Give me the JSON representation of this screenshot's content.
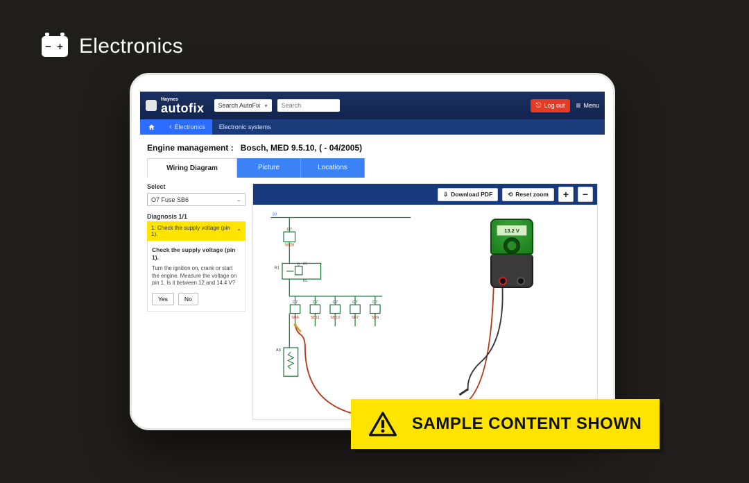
{
  "page_label": "Electronics",
  "header": {
    "brand_small": "Haynes",
    "brand": "autofix",
    "search_filter": "Search AutoFix",
    "search_placeholder": "Search",
    "logout": "Log out",
    "menu": "Menu"
  },
  "breadcrumb": {
    "electronics": "Electronics",
    "systems": "Electronic systems"
  },
  "title": {
    "prefix": "Engine management :",
    "model": "Bosch, MED 9.5.10, ( - 04/2005)"
  },
  "tabs": {
    "wiring": "Wiring Diagram",
    "picture": "Picture",
    "locations": "Locations"
  },
  "sidebar": {
    "select_label": "Select",
    "select_value": "O7  Fuse  SB6",
    "diagnosis_label": "Diagnosis 1/1",
    "step_label": "1: Check the supply voltage (pin 1).",
    "step_heading": "Check the supply voltage (pin 1).",
    "step_body": "Turn the ignition on, crank or start the engine. Measure the voltage on pin 1. Is it between 12 and 14.4 V?",
    "yes": "Yes",
    "no": "No"
  },
  "toolbar": {
    "download": "Download PDF",
    "reset": "Reset zoom",
    "plus": "+",
    "minus": "−"
  },
  "meter": {
    "reading": "13.2 V"
  },
  "diagram": {
    "wire_color": "#1a7a3a",
    "probe_color": "#b33a1a",
    "label_color": "#b33a1a",
    "top_label": "30",
    "nodes": {
      "O7": "O7",
      "SB28": "SB28",
      "R1": "R1",
      "D": "D",
      "86": "86",
      "85": "85",
      "SB6": "SB6",
      "SB11": "SB11",
      "SB13": "SB13",
      "SB7": "SB7",
      "SB9": "SB9",
      "A3": "A3"
    }
  },
  "banner": "SAMPLE CONTENT SHOWN",
  "colors": {
    "bg": "#1f1e1c",
    "header_bg": "#152a5c",
    "crumb_bg": "#1a3a7a",
    "blue": "#2c6cff",
    "tab_blue": "#3b82f6",
    "accent_red": "#e43b24",
    "yellow": "#ffe400"
  }
}
